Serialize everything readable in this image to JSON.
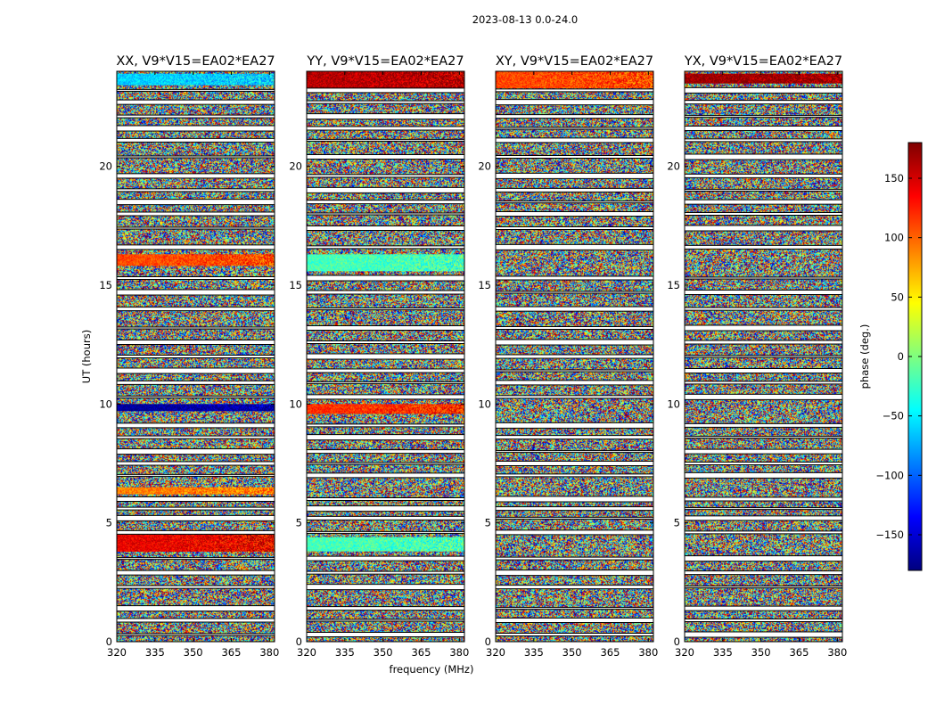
{
  "chart_data": {
    "type": "heatmap",
    "suptitle": "2023-08-13 0.0-24.0",
    "xlabel": "frequency (MHz)",
    "ylabel": "UT (hours)",
    "xlim": [
      320,
      382
    ],
    "ylim": [
      0,
      24
    ],
    "x_ticks": [
      320,
      335,
      350,
      365,
      380
    ],
    "y_ticks": [
      0,
      5,
      10,
      15,
      20
    ],
    "colorbar": {
      "label": "phase (deg.)",
      "range": [
        -180,
        180
      ],
      "ticks": [
        150,
        100,
        50,
        0,
        -50,
        -100,
        -150
      ],
      "tick_labels": [
        "150",
        "100",
        "50",
        "0",
        "−50",
        "−100",
        "−150"
      ],
      "colormap": [
        "#00007f",
        "#0000ff",
        "#007fff",
        "#00ffff",
        "#7fff7f",
        "#ffff00",
        "#ff7f00",
        "#ff0000",
        "#7f0000"
      ]
    },
    "panels": [
      {
        "title": "XX, V9*V15=EA02*EA27",
        "coherent_bands": [
          {
            "t0": 23.4,
            "t1": 23.9,
            "phase": -60
          },
          {
            "t0": 15.8,
            "t1": 16.3,
            "phase": 110
          },
          {
            "t0": 9.7,
            "t1": 10.0,
            "phase": -170
          },
          {
            "t0": 6.2,
            "t1": 6.5,
            "phase": 90
          },
          {
            "t0": 3.8,
            "t1": 4.5,
            "phase": 140
          }
        ]
      },
      {
        "title": "YY, V9*V15=EA02*EA27",
        "coherent_bands": [
          {
            "t0": 23.3,
            "t1": 24.0,
            "phase": 160
          },
          {
            "t0": 15.6,
            "t1": 16.3,
            "phase": -20
          },
          {
            "t0": 9.6,
            "t1": 10.0,
            "phase": 120
          },
          {
            "t0": 3.8,
            "t1": 4.4,
            "phase": -20
          }
        ]
      },
      {
        "title": "XY, V9*V15=EA02*EA27",
        "coherent_bands": [
          {
            "t0": 23.3,
            "t1": 24.0,
            "phase": 110
          }
        ]
      },
      {
        "title": "YX, V9*V15=EA02*EA27",
        "coherent_bands": [
          {
            "t0": 23.5,
            "t1": 23.9,
            "phase": 170
          }
        ]
      }
    ],
    "flagged_rows": [
      0.3,
      0.9,
      1.4,
      2.3,
      2.9,
      3.5,
      4.6,
      5.2,
      5.6,
      6.0,
      7.0,
      7.5,
      8.0,
      8.6,
      9.1,
      10.3,
      10.9,
      11.4,
      12.0,
      12.6,
      13.2,
      14.0,
      14.7,
      15.3,
      16.6,
      17.4,
      18.0,
      18.5,
      19.0,
      19.6,
      20.4,
      21.1,
      21.6,
      22.1,
      22.7,
      23.2
    ]
  }
}
